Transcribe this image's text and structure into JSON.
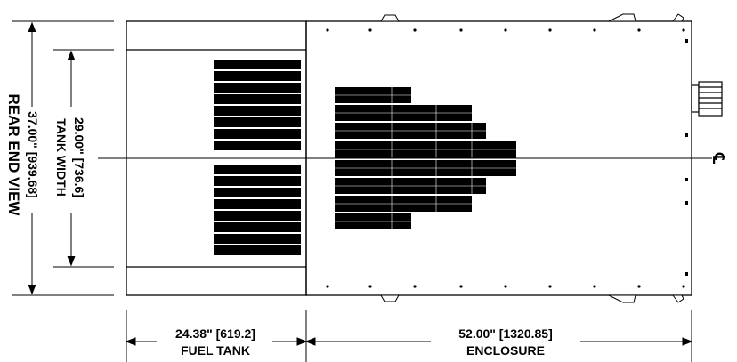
{
  "view_title": "REAR END VIEW",
  "dimensions": {
    "overall_height": "37.00\" [939.68]",
    "tank_width_value": "29.00\" [736.6]",
    "tank_width_label": "TANK WIDTH",
    "fuel_tank_value": "24.38\" [619.2]",
    "fuel_tank_label": "FUEL TANK",
    "enclosure_value": "52.00\" [1320.85]",
    "enclosure_label": "ENCLOSURE"
  },
  "centerline_symbol": "℄"
}
